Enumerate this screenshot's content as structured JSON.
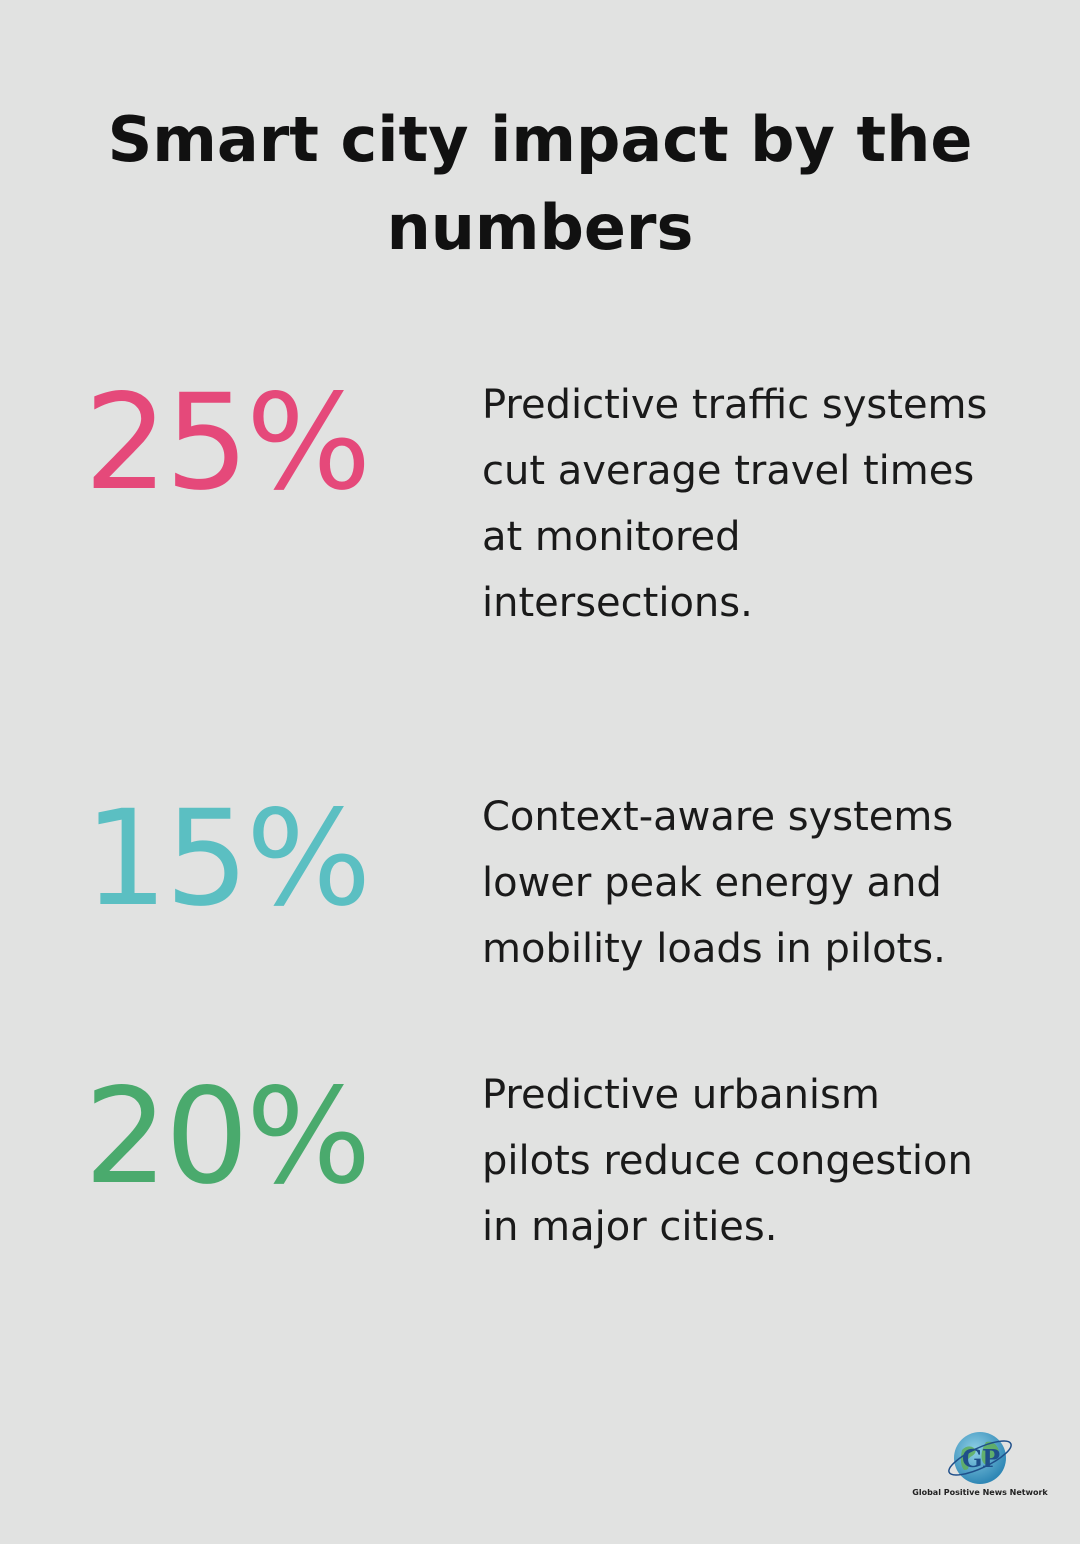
{
  "title": "Smart city impact by the numbers",
  "stats": [
    {
      "value": "25%",
      "color": "#e5497a",
      "text": "Predictive traffic systems cut average travel times at monitored intersections."
    },
    {
      "value": "15%",
      "color": "#5bbfc2",
      "text": "Context-aware systems lower peak energy and mobility loads in pilots."
    },
    {
      "value": "20%",
      "color": "#4aaa6d",
      "text": "Predictive urbanism pilots reduce congestion in major cities."
    }
  ],
  "logo": {
    "icon": "globe-icon",
    "letters": "GPN",
    "caption": "Global Positive News Network"
  }
}
